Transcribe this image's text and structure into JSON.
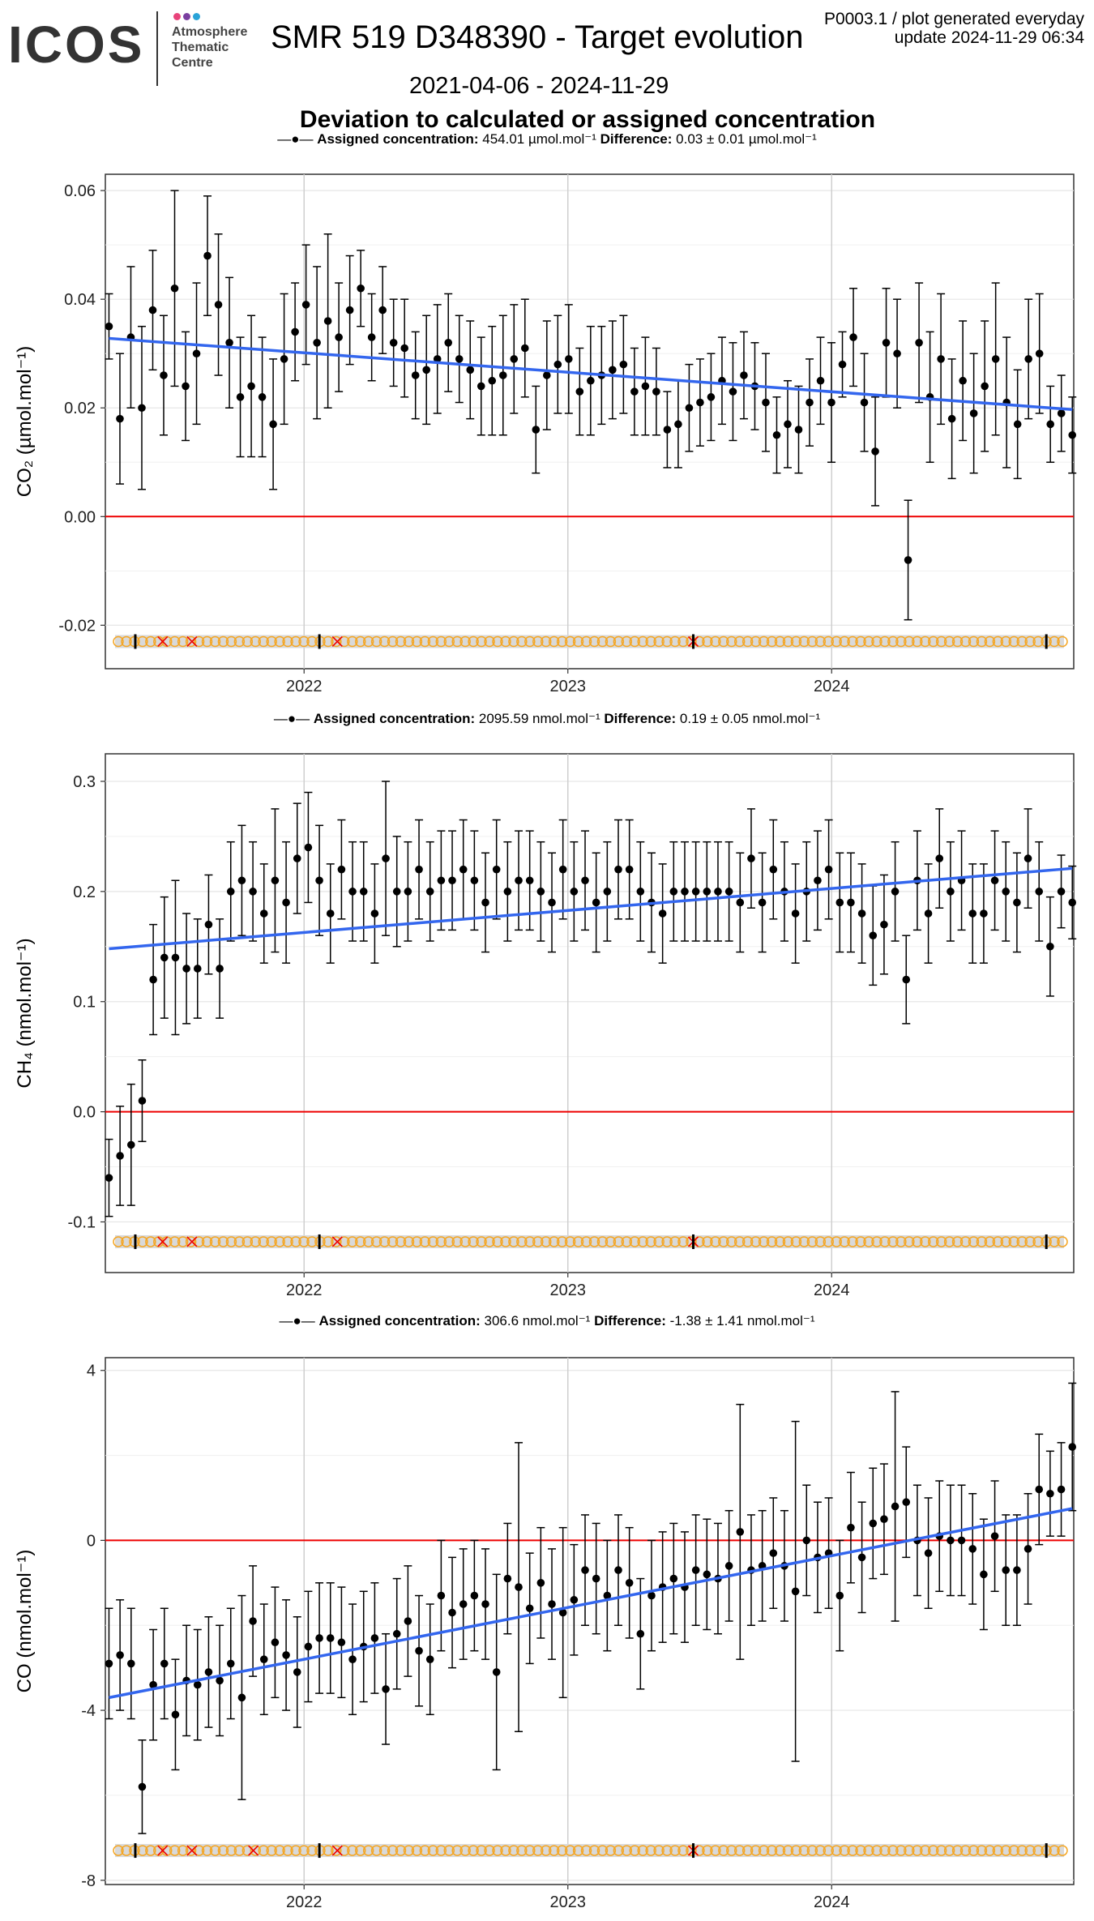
{
  "header": {
    "logo_text": "ICOS",
    "logo_subtext": [
      "Atmosphere",
      "Thematic",
      "Centre"
    ],
    "logo_dot_colors": [
      "#e8437a",
      "#7a3fa0",
      "#2aa3d8"
    ],
    "title": "SMR 519 D348390 - Target evolution",
    "date_range": "2021-04-06 - 2024-11-29",
    "plot_code": "P0003.1 / plot generated everyday",
    "update": "update  2024-11-29 06:34",
    "subtitle": "Deviation to calculated or assigned concentration"
  },
  "colors": {
    "trend": "#3366ee",
    "zero_line": "#ee0000",
    "points": "#000000",
    "flag_good": "#f5a623",
    "flag_bad": "#ee0000",
    "flag_band": "#d9d9d9",
    "grid": "#e6e6e6"
  },
  "chart_data": [
    {
      "type": "scatter",
      "gas": "CO2",
      "legend": {
        "assigned_label": "Assigned concentration:",
        "assigned_value": "454.01 µmol.mol⁻¹",
        "difference_label": "Difference:",
        "difference_value": "0.03 ± 0.01 µmol.mol⁻¹"
      },
      "ylabel": "CO₂ (µmol.mol⁻¹)",
      "ylim": [
        -0.028,
        0.063
      ],
      "yticks": [
        -0.02,
        0.0,
        0.02,
        0.04,
        0.06
      ],
      "ytick_labels": [
        "-0.02",
        "0.00",
        "0.02",
        "0.04",
        "0.06"
      ],
      "xlim": [
        "2021-04-01",
        "2024-12-01"
      ],
      "xticks": [
        "2022-01-01",
        "2023-01-01",
        "2024-01-01"
      ],
      "xtick_labels": [
        "2022",
        "2023",
        "2024"
      ],
      "trend": {
        "x": [
          "2021-04-06",
          "2024-11-29"
        ],
        "y": [
          0.0328,
          0.0197
        ]
      },
      "zero_line": 0,
      "flag_row_y": -0.023,
      "error_scale": 1,
      "points": [
        [
          0.035,
          0.006
        ],
        [
          0.018,
          0.012
        ],
        [
          0.033,
          0.013
        ],
        [
          0.02,
          0.015
        ],
        [
          0.038,
          0.011
        ],
        [
          0.026,
          0.011
        ],
        [
          0.042,
          0.018
        ],
        [
          0.024,
          0.01
        ],
        [
          0.03,
          0.013
        ],
        [
          0.048,
          0.011
        ],
        [
          0.039,
          0.013
        ],
        [
          0.032,
          0.012
        ],
        [
          0.022,
          0.011
        ],
        [
          0.024,
          0.013
        ],
        [
          0.022,
          0.011
        ],
        [
          0.017,
          0.012
        ],
        [
          0.029,
          0.012
        ],
        [
          0.034,
          0.009
        ],
        [
          0.039,
          0.011
        ],
        [
          0.032,
          0.014
        ],
        [
          0.036,
          0.016
        ],
        [
          0.033,
          0.01
        ],
        [
          0.038,
          0.01
        ],
        [
          0.042,
          0.007
        ],
        [
          0.033,
          0.008
        ],
        [
          0.038,
          0.008
        ],
        [
          0.032,
          0.008
        ],
        [
          0.031,
          0.009
        ],
        [
          0.026,
          0.008
        ],
        [
          0.027,
          0.01
        ],
        [
          0.029,
          0.01
        ],
        [
          0.032,
          0.009
        ],
        [
          0.029,
          0.008
        ],
        [
          0.027,
          0.009
        ],
        [
          0.024,
          0.009
        ],
        [
          0.025,
          0.01
        ],
        [
          0.026,
          0.011
        ],
        [
          0.029,
          0.01
        ],
        [
          0.031,
          0.009
        ],
        [
          0.016,
          0.008
        ],
        [
          0.026,
          0.01
        ],
        [
          0.028,
          0.009
        ],
        [
          0.029,
          0.01
        ],
        [
          0.023,
          0.008
        ],
        [
          0.025,
          0.01
        ],
        [
          0.026,
          0.009
        ],
        [
          0.027,
          0.009
        ],
        [
          0.028,
          0.009
        ],
        [
          0.023,
          0.008
        ],
        [
          0.024,
          0.009
        ],
        [
          0.023,
          0.008
        ],
        [
          0.016,
          0.007
        ],
        [
          0.017,
          0.008
        ],
        [
          0.02,
          0.008
        ],
        [
          0.021,
          0.008
        ],
        [
          0.022,
          0.008
        ],
        [
          0.025,
          0.008
        ],
        [
          0.023,
          0.009
        ],
        [
          0.026,
          0.008
        ],
        [
          0.024,
          0.008
        ],
        [
          0.021,
          0.009
        ],
        [
          0.015,
          0.007
        ],
        [
          0.017,
          0.008
        ],
        [
          0.016,
          0.008
        ],
        [
          0.021,
          0.008
        ],
        [
          0.025,
          0.008
        ],
        [
          0.021,
          0.011
        ],
        [
          0.028,
          0.006
        ],
        [
          0.033,
          0.009
        ],
        [
          0.021,
          0.009
        ],
        [
          0.012,
          0.01
        ],
        [
          0.032,
          0.01
        ],
        [
          0.03,
          0.01
        ],
        [
          -0.008,
          0.011
        ],
        [
          0.032,
          0.011
        ],
        [
          0.022,
          0.012
        ],
        [
          0.029,
          0.012
        ],
        [
          0.018,
          0.011
        ],
        [
          0.025,
          0.011
        ],
        [
          0.019,
          0.011
        ],
        [
          0.024,
          0.012
        ],
        [
          0.029,
          0.014
        ],
        [
          0.021,
          0.012
        ],
        [
          0.017,
          0.01
        ],
        [
          0.029,
          0.011
        ],
        [
          0.03,
          0.011
        ],
        [
          0.017,
          0.007
        ],
        [
          0.019,
          0.007
        ],
        [
          0.015,
          0.007
        ]
      ]
    },
    {
      "type": "scatter",
      "gas": "CH4",
      "legend": {
        "assigned_label": "Assigned concentration:",
        "assigned_value": "2095.59 nmol.mol⁻¹",
        "difference_label": "Difference:",
        "difference_value": "0.19 ± 0.05 nmol.mol⁻¹"
      },
      "ylabel": "CH₄ (nmol.mol⁻¹)",
      "ylim": [
        -0.146,
        0.325
      ],
      "yticks": [
        -0.1,
        0.0,
        0.1,
        0.2,
        0.3
      ],
      "ytick_labels": [
        "-0.1",
        "0.0",
        "0.1",
        "0.2",
        "0.3"
      ],
      "xlim": [
        "2021-04-01",
        "2024-12-01"
      ],
      "xticks": [
        "2022-01-01",
        "2023-01-01",
        "2024-01-01"
      ],
      "xtick_labels": [
        "2022",
        "2023",
        "2024"
      ],
      "trend": {
        "x": [
          "2021-04-06",
          "2024-11-29"
        ],
        "y": [
          0.148,
          0.221
        ]
      },
      "zero_line": 0,
      "flag_row_y": -0.118,
      "error_scale": 1,
      "points": [
        [
          -0.06,
          0.035
        ],
        [
          -0.04,
          0.045
        ],
        [
          -0.03,
          0.055
        ],
        [
          0.01,
          0.037
        ],
        [
          0.12,
          0.05
        ],
        [
          0.14,
          0.055
        ],
        [
          0.14,
          0.07
        ],
        [
          0.13,
          0.05
        ],
        [
          0.13,
          0.045
        ],
        [
          0.17,
          0.045
        ],
        [
          0.13,
          0.045
        ],
        [
          0.2,
          0.045
        ],
        [
          0.21,
          0.05
        ],
        [
          0.2,
          0.045
        ],
        [
          0.18,
          0.045
        ],
        [
          0.21,
          0.065
        ],
        [
          0.19,
          0.055
        ],
        [
          0.23,
          0.05
        ],
        [
          0.24,
          0.05
        ],
        [
          0.21,
          0.05
        ],
        [
          0.18,
          0.045
        ],
        [
          0.22,
          0.045
        ],
        [
          0.2,
          0.045
        ],
        [
          0.2,
          0.045
        ],
        [
          0.18,
          0.045
        ],
        [
          0.23,
          0.07
        ],
        [
          0.2,
          0.05
        ],
        [
          0.2,
          0.045
        ],
        [
          0.22,
          0.045
        ],
        [
          0.2,
          0.045
        ],
        [
          0.21,
          0.045
        ],
        [
          0.21,
          0.045
        ],
        [
          0.22,
          0.045
        ],
        [
          0.21,
          0.045
        ],
        [
          0.19,
          0.045
        ],
        [
          0.22,
          0.045
        ],
        [
          0.2,
          0.045
        ],
        [
          0.21,
          0.045
        ],
        [
          0.21,
          0.045
        ],
        [
          0.2,
          0.045
        ],
        [
          0.19,
          0.045
        ],
        [
          0.22,
          0.045
        ],
        [
          0.2,
          0.045
        ],
        [
          0.21,
          0.045
        ],
        [
          0.19,
          0.045
        ],
        [
          0.2,
          0.045
        ],
        [
          0.22,
          0.045
        ],
        [
          0.22,
          0.045
        ],
        [
          0.2,
          0.045
        ],
        [
          0.19,
          0.045
        ],
        [
          0.18,
          0.045
        ],
        [
          0.2,
          0.045
        ],
        [
          0.2,
          0.045
        ],
        [
          0.2,
          0.045
        ],
        [
          0.2,
          0.045
        ],
        [
          0.2,
          0.045
        ],
        [
          0.2,
          0.045
        ],
        [
          0.19,
          0.045
        ],
        [
          0.23,
          0.045
        ],
        [
          0.19,
          0.045
        ],
        [
          0.22,
          0.045
        ],
        [
          0.2,
          0.045
        ],
        [
          0.18,
          0.045
        ],
        [
          0.2,
          0.045
        ],
        [
          0.21,
          0.045
        ],
        [
          0.22,
          0.045
        ],
        [
          0.19,
          0.045
        ],
        [
          0.19,
          0.045
        ],
        [
          0.18,
          0.045
        ],
        [
          0.16,
          0.045
        ],
        [
          0.17,
          0.045
        ],
        [
          0.2,
          0.045
        ],
        [
          0.12,
          0.04
        ],
        [
          0.21,
          0.045
        ],
        [
          0.18,
          0.045
        ],
        [
          0.23,
          0.045
        ],
        [
          0.2,
          0.045
        ],
        [
          0.21,
          0.045
        ],
        [
          0.18,
          0.045
        ],
        [
          0.18,
          0.045
        ],
        [
          0.21,
          0.045
        ],
        [
          0.2,
          0.045
        ],
        [
          0.19,
          0.045
        ],
        [
          0.23,
          0.045
        ],
        [
          0.2,
          0.045
        ],
        [
          0.15,
          0.045
        ],
        [
          0.2,
          0.033
        ],
        [
          0.19,
          0.033
        ]
      ]
    },
    {
      "type": "scatter",
      "gas": "CO",
      "legend": {
        "assigned_label": "Assigned concentration:",
        "assigned_value": "306.6 nmol.mol⁻¹",
        "difference_label": "Difference:",
        "difference_value": "-1.38 ± 1.41 nmol.mol⁻¹"
      },
      "ylabel": "CO (nmol.mol⁻¹)",
      "ylim": [
        -8.1,
        4.3
      ],
      "yticks": [
        -8,
        -4,
        0,
        4
      ],
      "ytick_labels": [
        "-8",
        "-4",
        "0",
        "4"
      ],
      "xlim": [
        "2021-04-01",
        "2024-12-01"
      ],
      "xticks": [
        "2022-01-01",
        "2023-01-01",
        "2024-01-01"
      ],
      "xtick_labels": [
        "2022",
        "2023",
        "2024"
      ],
      "trend": {
        "x": [
          "2021-04-06",
          "2024-11-29"
        ],
        "y": [
          -3.7,
          0.75
        ]
      },
      "zero_line": 0,
      "flag_row_y": -7.3,
      "error_scale": 1,
      "points": [
        [
          -2.9,
          1.3
        ],
        [
          -2.7,
          1.3
        ],
        [
          -2.9,
          1.3
        ],
        [
          -5.8,
          1.1
        ],
        [
          -3.4,
          1.3
        ],
        [
          -2.9,
          1.3
        ],
        [
          -4.1,
          1.3
        ],
        [
          -3.3,
          1.3
        ],
        [
          -3.4,
          1.3
        ],
        [
          -3.1,
          1.3
        ],
        [
          -3.3,
          1.3
        ],
        [
          -2.9,
          1.3
        ],
        [
          -3.7,
          2.4
        ],
        [
          -1.9,
          1.3
        ],
        [
          -2.8,
          1.3
        ],
        [
          -2.4,
          1.3
        ],
        [
          -2.7,
          1.3
        ],
        [
          -3.1,
          1.3
        ],
        [
          -2.5,
          1.3
        ],
        [
          -2.3,
          1.3
        ],
        [
          -2.3,
          1.3
        ],
        [
          -2.4,
          1.3
        ],
        [
          -2.8,
          1.3
        ],
        [
          -2.5,
          1.3
        ],
        [
          -2.3,
          1.3
        ],
        [
          -3.5,
          1.3
        ],
        [
          -2.2,
          1.3
        ],
        [
          -1.9,
          1.3
        ],
        [
          -2.6,
          1.3
        ],
        [
          -2.8,
          1.3
        ],
        [
          -1.3,
          1.3
        ],
        [
          -1.7,
          1.3
        ],
        [
          -1.5,
          1.3
        ],
        [
          -1.3,
          1.3
        ],
        [
          -1.5,
          1.3
        ],
        [
          -3.1,
          2.3
        ],
        [
          -0.9,
          1.3
        ],
        [
          -1.1,
          3.4
        ],
        [
          -1.6,
          1.3
        ],
        [
          -1.0,
          1.3
        ],
        [
          -1.5,
          1.3
        ],
        [
          -1.7,
          2.0
        ],
        [
          -1.4,
          1.3
        ],
        [
          -0.7,
          1.3
        ],
        [
          -0.9,
          1.3
        ],
        [
          -1.3,
          1.3
        ],
        [
          -0.7,
          1.3
        ],
        [
          -1.0,
          1.3
        ],
        [
          -2.2,
          1.3
        ],
        [
          -1.3,
          1.3
        ],
        [
          -1.1,
          1.3
        ],
        [
          -0.9,
          1.3
        ],
        [
          -1.1,
          1.3
        ],
        [
          -0.7,
          1.3
        ],
        [
          -0.8,
          1.3
        ],
        [
          -0.9,
          1.3
        ],
        [
          -0.6,
          1.3
        ],
        [
          0.2,
          3.0
        ],
        [
          -0.7,
          1.3
        ],
        [
          -0.6,
          1.3
        ],
        [
          -0.3,
          1.3
        ],
        [
          -0.6,
          1.3
        ],
        [
          -1.2,
          4.0
        ],
        [
          0.0,
          1.3
        ],
        [
          -0.4,
          1.3
        ],
        [
          -0.3,
          1.3
        ],
        [
          -1.3,
          1.3
        ],
        [
          0.3,
          1.3
        ],
        [
          -0.4,
          1.3
        ],
        [
          0.4,
          1.3
        ],
        [
          0.5,
          1.3
        ],
        [
          0.8,
          2.7
        ],
        [
          0.9,
          1.3
        ],
        [
          0.0,
          1.3
        ],
        [
          -0.3,
          1.3
        ],
        [
          0.1,
          1.3
        ],
        [
          0.0,
          1.3
        ],
        [
          0.0,
          1.3
        ],
        [
          -0.2,
          1.3
        ],
        [
          -0.8,
          1.3
        ],
        [
          0.1,
          1.3
        ],
        [
          -0.7,
          1.3
        ],
        [
          -0.7,
          1.3
        ],
        [
          -0.2,
          1.3
        ],
        [
          1.2,
          1.3
        ],
        [
          1.1,
          1.0
        ],
        [
          1.2,
          1.1
        ],
        [
          2.2,
          1.5
        ]
      ]
    }
  ]
}
